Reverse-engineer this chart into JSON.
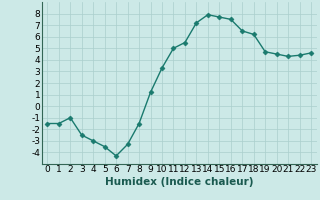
{
  "x": [
    0,
    1,
    2,
    3,
    4,
    5,
    6,
    7,
    8,
    9,
    10,
    11,
    12,
    13,
    14,
    15,
    16,
    17,
    18,
    19,
    20,
    21,
    22,
    23
  ],
  "y": [
    -1.5,
    -1.5,
    -1.0,
    -2.5,
    -3.0,
    -3.5,
    -4.3,
    -3.3,
    -1.5,
    1.2,
    3.3,
    5.0,
    5.5,
    7.2,
    7.9,
    7.7,
    7.5,
    6.5,
    6.2,
    4.7,
    4.5,
    4.3,
    4.4,
    4.6
  ],
  "line_color": "#1a7a6e",
  "marker": "D",
  "marker_size": 2.5,
  "bg_color": "#cce9e7",
  "grid_color": "#aacfcd",
  "xlabel": "Humidex (Indice chaleur)",
  "ylim": [
    -5,
    9
  ],
  "xlim": [
    -0.5,
    23.5
  ],
  "yticks": [
    -4,
    -3,
    -2,
    -1,
    0,
    1,
    2,
    3,
    4,
    5,
    6,
    7,
    8
  ],
  "xticks": [
    0,
    1,
    2,
    3,
    4,
    5,
    6,
    7,
    8,
    9,
    10,
    11,
    12,
    13,
    14,
    15,
    16,
    17,
    18,
    19,
    20,
    21,
    22,
    23
  ],
  "tick_label_size": 6.5,
  "xlabel_size": 7.5,
  "line_width": 1.0,
  "spine_color": "#336655"
}
